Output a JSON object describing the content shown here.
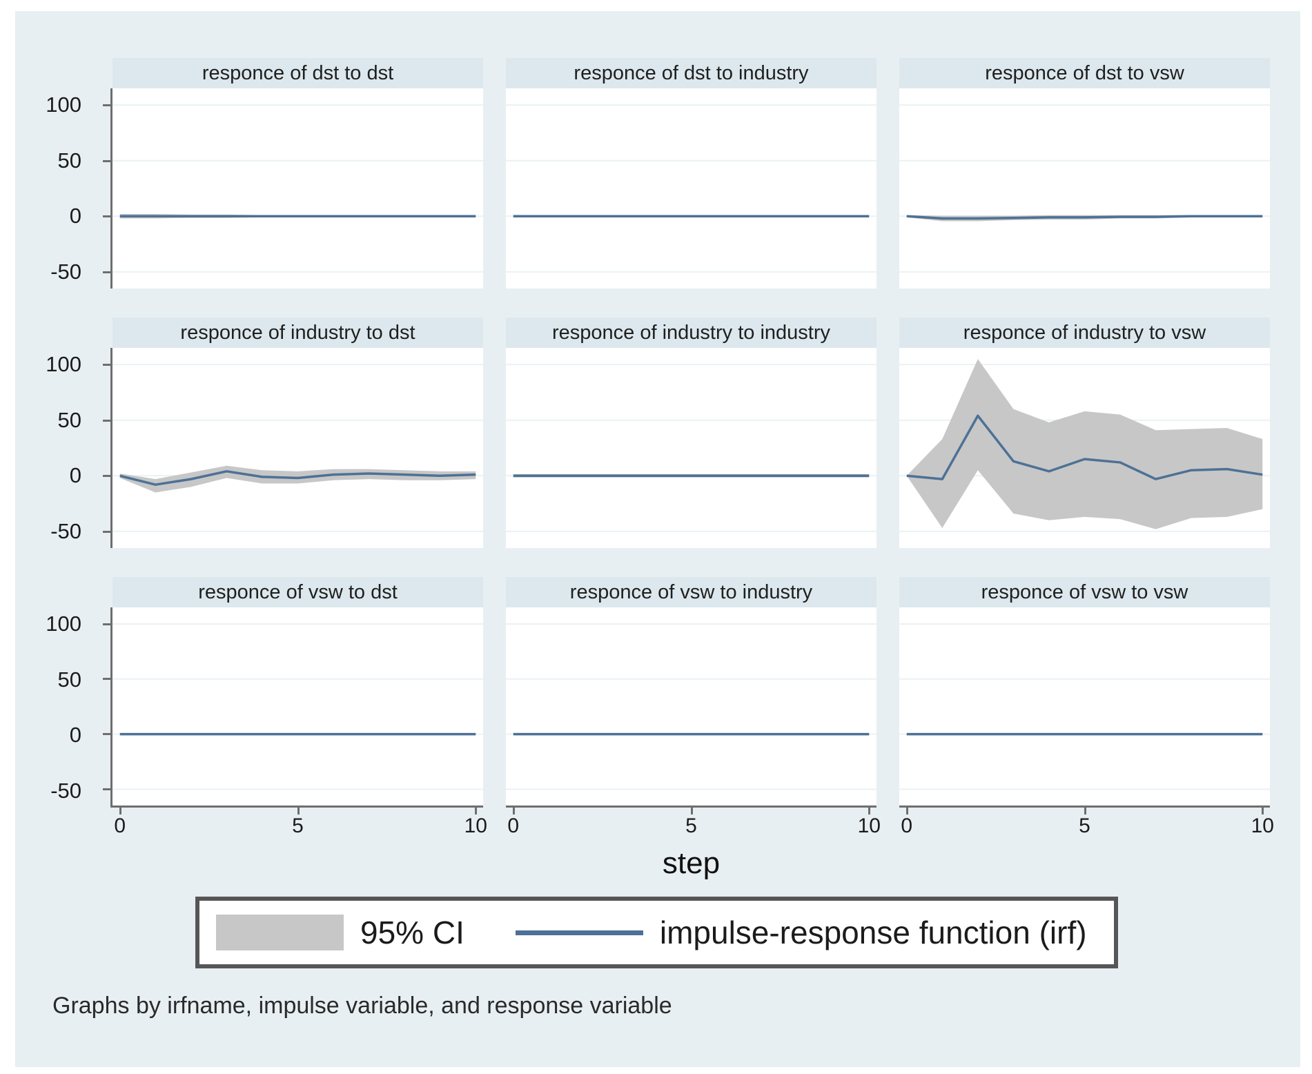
{
  "figure": {
    "xlabel": "step",
    "note": "Graphs by irfname, impulse variable, and response variable",
    "legend": [
      {
        "swatch": "ci-band",
        "label": "95% CI"
      },
      {
        "swatch": "irf-line",
        "label": "impulse-response function (irf)"
      }
    ]
  },
  "colors": {
    "background": "#e8eff2",
    "title_strip": "#dce8ed",
    "plot_background": "#ffffff",
    "gridline": "#eaf2f5",
    "axis": "#6e6e6e",
    "irf_line": "#4d7196",
    "ci_band": "#c7c7c7",
    "legend_border": "#565656",
    "text": "#1b1b1b"
  },
  "chart_data": {
    "type": "line",
    "layout": "3x3 small multiples (Stata irf graph: impulse-response functions with 95% CI bands)",
    "x": [
      0,
      1,
      2,
      3,
      4,
      5,
      6,
      7,
      8,
      9,
      10
    ],
    "xlabel": "step",
    "x_ticks": [
      0,
      5,
      10
    ],
    "x_tick_labels": [
      "0",
      "5",
      "10"
    ],
    "xlim": [
      0,
      10
    ],
    "y_ticks": [
      100,
      50,
      0,
      -50
    ],
    "y_tick_labels": [
      "100",
      "50",
      "0",
      "-50"
    ],
    "ylim": [
      -65,
      115
    ],
    "grid": "horizontal gridlines at y ticks",
    "legend_position": "bottom center, boxed",
    "panels": [
      {
        "title": "responce of dst to dst",
        "irf": [
          0,
          0,
          0,
          0,
          0,
          0,
          0,
          0,
          0,
          0,
          0
        ],
        "ci_upper": [
          2,
          2,
          1.5,
          1.5,
          1,
          1,
          1,
          1,
          1,
          1,
          1
        ],
        "ci_lower": [
          -2,
          -2,
          -1.5,
          -1.5,
          -1,
          -1,
          -1,
          -1,
          -1,
          -1,
          -1
        ]
      },
      {
        "title": "responce of dst to industry",
        "irf": [
          0,
          0,
          0,
          0,
          0,
          0,
          0,
          0,
          0,
          0,
          0
        ],
        "ci_upper": [
          1,
          1,
          1,
          1,
          1,
          1,
          1,
          1,
          1,
          1,
          1
        ],
        "ci_lower": [
          -1,
          -1,
          -1,
          -1,
          -1,
          -1,
          -1,
          -1,
          -1,
          -1,
          -1
        ]
      },
      {
        "title": "responce of dst to vsw",
        "irf": [
          0,
          -2,
          -2,
          -1.5,
          -1,
          -1,
          -0.5,
          -0.5,
          0,
          0,
          0
        ],
        "ci_upper": [
          1,
          0.5,
          0.5,
          0.5,
          1,
          1,
          1,
          1,
          1,
          1,
          1
        ],
        "ci_lower": [
          -1,
          -4.5,
          -4.5,
          -3.5,
          -3,
          -3,
          -2,
          -2,
          -1,
          -1,
          -1
        ]
      },
      {
        "title": "responce of industry to dst",
        "irf": [
          0,
          -8,
          -3,
          4,
          -1,
          -2,
          1,
          2,
          1,
          0,
          1
        ],
        "ci_upper": [
          2,
          -3,
          3,
          9,
          5,
          4,
          6,
          6,
          5,
          4,
          4
        ],
        "ci_lower": [
          -2,
          -15,
          -10,
          -2,
          -7,
          -7,
          -4,
          -3,
          -4,
          -4,
          -3
        ]
      },
      {
        "title": "responce of industry to industry",
        "irf": [
          0,
          0,
          0,
          0,
          0,
          0,
          0,
          0,
          0,
          0,
          0
        ],
        "ci_upper": [
          1.5,
          1.5,
          1.5,
          1.5,
          1.5,
          1.5,
          1.5,
          1.5,
          1.5,
          1.5,
          1.5
        ],
        "ci_lower": [
          -1.5,
          -1.5,
          -1.5,
          -1.5,
          -1.5,
          -1.5,
          -1.5,
          -1.5,
          -1.5,
          -1.5,
          -1.5
        ]
      },
      {
        "title": "responce of industry to vsw",
        "irf": [
          0,
          -3,
          54,
          13,
          4,
          15,
          12,
          -3,
          5,
          6,
          1
        ],
        "ci_upper": [
          0,
          33,
          105,
          60,
          48,
          58,
          55,
          41,
          42,
          43,
          33
        ],
        "ci_lower": [
          0,
          -47,
          5,
          -34,
          -40,
          -37,
          -39,
          -48,
          -38,
          -37,
          -30
        ]
      },
      {
        "title": "responce of vsw to dst",
        "irf": [
          0,
          0,
          0,
          0,
          0,
          0,
          0,
          0,
          0,
          0,
          0
        ],
        "ci_upper": [
          1,
          1,
          1,
          1,
          1,
          1,
          1,
          1,
          1,
          1,
          1
        ],
        "ci_lower": [
          -1,
          -1,
          -1,
          -1,
          -1,
          -1,
          -1,
          -1,
          -1,
          -1,
          -1
        ]
      },
      {
        "title": "responce of vsw to industry",
        "irf": [
          0,
          0,
          0,
          0,
          0,
          0,
          0,
          0,
          0,
          0,
          0
        ],
        "ci_upper": [
          1,
          1,
          1,
          1,
          1,
          1,
          1,
          1,
          1,
          1,
          1
        ],
        "ci_lower": [
          -1,
          -1,
          -1,
          -1,
          -1,
          -1,
          -1,
          -1,
          -1,
          -1,
          -1
        ]
      },
      {
        "title": "responce of vsw to vsw",
        "irf": [
          0,
          0,
          0,
          0,
          0,
          0,
          0,
          0,
          0,
          0,
          0
        ],
        "ci_upper": [
          1,
          1,
          1,
          1,
          1,
          1,
          1,
          1,
          1,
          1,
          1
        ],
        "ci_lower": [
          -1,
          -1,
          -1,
          -1,
          -1,
          -1,
          -1,
          -1,
          -1,
          -1,
          -1
        ]
      }
    ]
  }
}
